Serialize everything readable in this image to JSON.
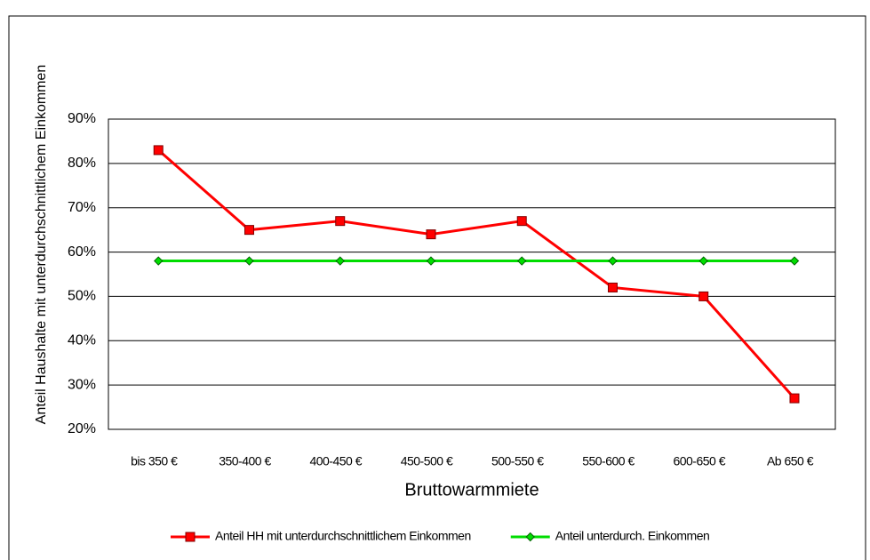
{
  "chart_data": {
    "type": "line",
    "x_label": "Bruttowarmmiete",
    "y_label": "Anteil Haushalte mit unterdurchschnittlichem Einkommen",
    "categories": [
      "bis 350 €",
      "350-400 €",
      "400-450 €",
      "450-500 €",
      "500-550 €",
      "550-600 €",
      "600-650 €",
      "Ab 650 €"
    ],
    "series": [
      {
        "name": "Anteil HH mit unterdurchschnittlichem Einkommen",
        "color": "#ff0000",
        "marker": "square",
        "values": [
          83,
          65,
          67,
          64,
          67,
          52,
          50,
          27
        ]
      },
      {
        "name": "Anteil unterdurch. Einkommen",
        "color": "#00dd00",
        "marker": "diamond",
        "values": [
          58,
          58,
          58,
          58,
          58,
          58,
          58,
          58
        ]
      }
    ],
    "ylim": [
      20,
      90
    ],
    "yticks": [
      {
        "value": 20,
        "label": "20%"
      },
      {
        "value": 30,
        "label": "30%"
      },
      {
        "value": 40,
        "label": "40%"
      },
      {
        "value": 50,
        "label": "50%"
      },
      {
        "value": 60,
        "label": "60%"
      },
      {
        "value": 70,
        "label": "70%"
      },
      {
        "value": 80,
        "label": "80%"
      },
      {
        "value": 90,
        "label": "90%"
      }
    ],
    "grid": true,
    "legend": "bottom"
  }
}
